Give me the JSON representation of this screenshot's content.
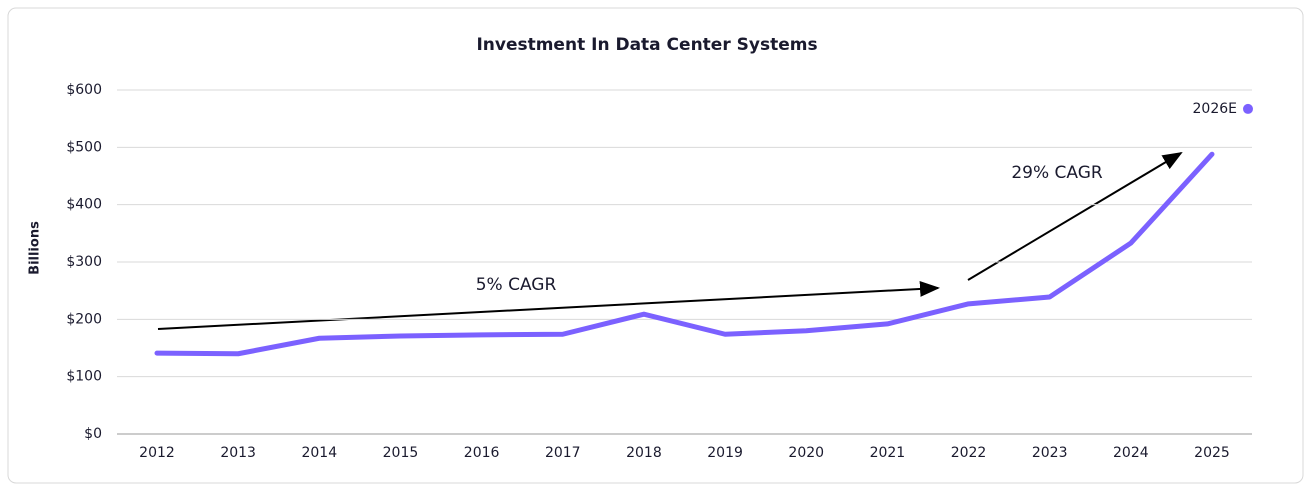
{
  "chart_data": {
    "type": "line",
    "title": "Investment In Data Center Systems",
    "y_label": "Billions",
    "categories": [
      "2012",
      "2013",
      "2014",
      "2015",
      "2016",
      "2017",
      "2018",
      "2019",
      "2020",
      "2021",
      "2022",
      "2023",
      "2024",
      "2025"
    ],
    "series": [
      {
        "name": "Investment",
        "color": "#7b61ff",
        "values": [
          141,
          140,
          167,
          171,
          173,
          174,
          209,
          174,
          180,
          192,
          227,
          239,
          333,
          488
        ]
      }
    ],
    "estimate": {
      "label": "2026E",
      "value": 567
    },
    "annotations": [
      "5% CAGR",
      "29% CAGR"
    ],
    "ylim": [
      0,
      600
    ],
    "yticks": [
      {
        "value": 0,
        "label": "$0"
      },
      {
        "value": 100,
        "label": "$100"
      },
      {
        "value": 200,
        "label": "$200"
      },
      {
        "value": 300,
        "label": "$300"
      },
      {
        "value": 400,
        "label": "$400"
      },
      {
        "value": 500,
        "label": "$500"
      },
      {
        "value": 600,
        "label": "$600"
      }
    ],
    "grid": true
  }
}
